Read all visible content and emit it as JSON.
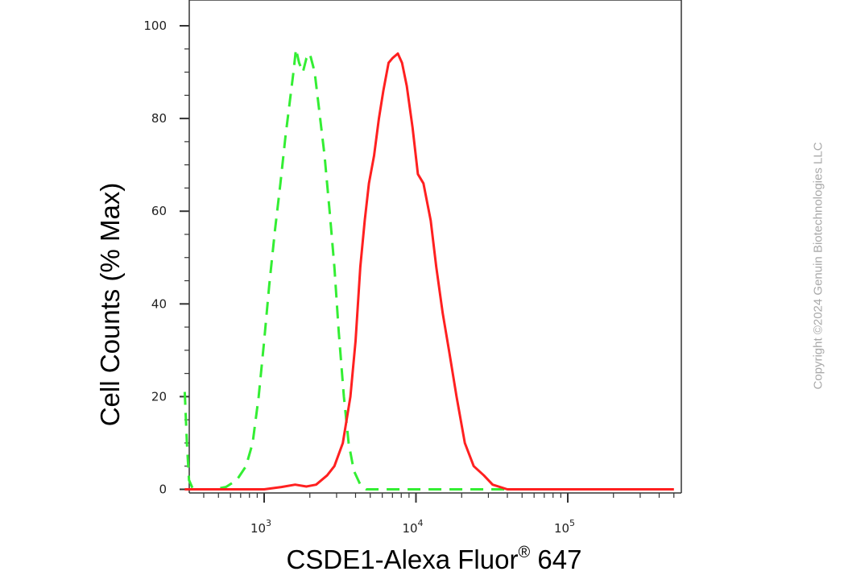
{
  "chart_data": {
    "type": "line",
    "title": "",
    "xlabel": "CSDE1-Alexa Fluor",
    "xlabel_superscript": "®",
    "xlabel_suffix": " 647",
    "ylabel": "Cell Counts (% Max)",
    "x_scale": "log",
    "xlim": [
      300,
      500000
    ],
    "ylim": [
      -1,
      105
    ],
    "y_ticks": [
      0,
      20,
      40,
      60,
      80,
      100
    ],
    "x_ticks": [
      {
        "value": 1000,
        "base": "10",
        "exp": "3"
      },
      {
        "value": 10000,
        "base": "10",
        "exp": "4"
      },
      {
        "value": 100000,
        "base": "10",
        "exp": "5"
      }
    ],
    "grid": false,
    "legend": "none",
    "series": [
      {
        "style": "dashed",
        "color": "#33ee33",
        "points": [
          [
            300,
            21
          ],
          [
            310,
            10
          ],
          [
            320,
            2
          ],
          [
            340,
            0
          ],
          [
            400,
            0
          ],
          [
            470,
            0
          ],
          [
            560,
            0.5
          ],
          [
            660,
            2
          ],
          [
            760,
            5
          ],
          [
            840,
            10
          ],
          [
            920,
            20
          ],
          [
            1000,
            32
          ],
          [
            1080,
            44
          ],
          [
            1180,
            56
          ],
          [
            1280,
            66
          ],
          [
            1380,
            76
          ],
          [
            1480,
            84
          ],
          [
            1560,
            90
          ],
          [
            1620,
            95
          ],
          [
            1700,
            92
          ],
          [
            1800,
            90
          ],
          [
            1900,
            93
          ],
          [
            2000,
            94
          ],
          [
            2150,
            90
          ],
          [
            2300,
            82
          ],
          [
            2500,
            72
          ],
          [
            2700,
            60
          ],
          [
            2900,
            48
          ],
          [
            3100,
            34
          ],
          [
            3350,
            20
          ],
          [
            3600,
            10
          ],
          [
            3900,
            4
          ],
          [
            4300,
            1
          ],
          [
            4700,
            0
          ],
          [
            10000,
            0
          ],
          [
            20000,
            0
          ],
          [
            30000,
            0
          ],
          [
            60000,
            0
          ],
          [
            150000,
            0
          ],
          [
            500000,
            0
          ]
        ]
      },
      {
        "style": "solid",
        "color": "#ff2020",
        "points": [
          [
            300,
            0
          ],
          [
            1000,
            0
          ],
          [
            1300,
            0.5
          ],
          [
            1600,
            1
          ],
          [
            1900,
            0.6
          ],
          [
            2200,
            1
          ],
          [
            2600,
            3
          ],
          [
            2900,
            5
          ],
          [
            3300,
            10
          ],
          [
            3700,
            20
          ],
          [
            4000,
            32
          ],
          [
            4300,
            48
          ],
          [
            4600,
            58
          ],
          [
            4900,
            66
          ],
          [
            5300,
            72
          ],
          [
            5700,
            80
          ],
          [
            6100,
            86
          ],
          [
            6600,
            92
          ],
          [
            7000,
            93
          ],
          [
            7600,
            94
          ],
          [
            8100,
            92
          ],
          [
            8700,
            87
          ],
          [
            9500,
            78
          ],
          [
            10300,
            68
          ],
          [
            11200,
            66
          ],
          [
            12500,
            58
          ],
          [
            13600,
            48
          ],
          [
            15000,
            38
          ],
          [
            16500,
            30
          ],
          [
            18500,
            20
          ],
          [
            21000,
            10
          ],
          [
            24000,
            5
          ],
          [
            28000,
            3
          ],
          [
            32000,
            1
          ],
          [
            40000,
            0
          ],
          [
            60000,
            0
          ],
          [
            150000,
            0
          ],
          [
            500000,
            0
          ]
        ]
      }
    ]
  },
  "copyright": "Copyright ©2024 Genuin Biotechnologies LLC"
}
